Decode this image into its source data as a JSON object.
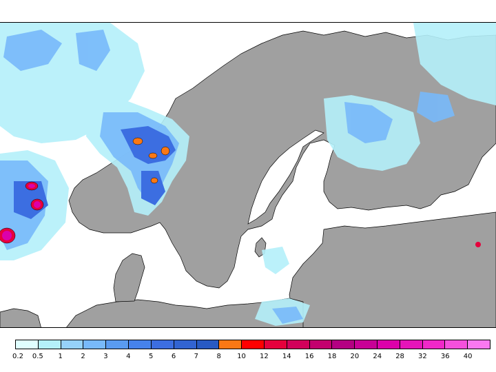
{
  "map": {
    "land_color": "#a0a0a0",
    "sea_color": "#ffffff",
    "border_color": "#000000"
  },
  "legend": {
    "levels": [
      {
        "label": "0.2",
        "color": "#e0ffff"
      },
      {
        "label": "0.5",
        "color": "#b4f0fa"
      },
      {
        "label": "1",
        "color": "#96d2fa"
      },
      {
        "label": "2",
        "color": "#78b9fa"
      },
      {
        "label": "3",
        "color": "#5a9bf0"
      },
      {
        "label": "4",
        "color": "#4682eb"
      },
      {
        "label": "5",
        "color": "#3c6ee1"
      },
      {
        "label": "6",
        "color": "#3264d2"
      },
      {
        "label": "7",
        "color": "#285ac3"
      },
      {
        "label": "8",
        "color": "#fa7814"
      },
      {
        "label": "10",
        "color": "#ff0000"
      },
      {
        "label": "12",
        "color": "#e6003c"
      },
      {
        "label": "14",
        "color": "#d2005a"
      },
      {
        "label": "16",
        "color": "#c3006e"
      },
      {
        "label": "18",
        "color": "#b40082"
      },
      {
        "label": "20",
        "color": "#c80096"
      },
      {
        "label": "24",
        "color": "#dc00aa"
      },
      {
        "label": "28",
        "color": "#e614b9"
      },
      {
        "label": "32",
        "color": "#f028c8"
      },
      {
        "label": "36",
        "color": "#f550dc"
      },
      {
        "label": "40",
        "color": "#fa78f0"
      }
    ]
  }
}
